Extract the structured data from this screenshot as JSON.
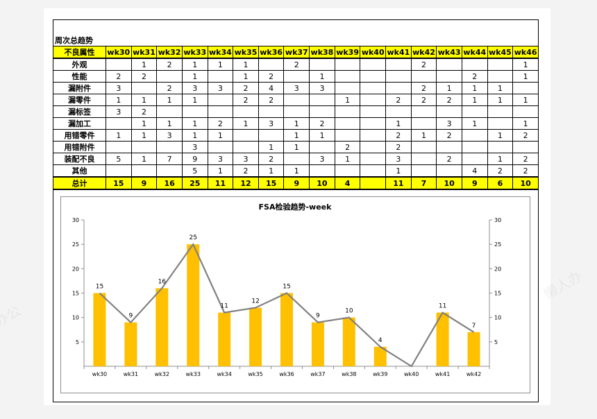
{
  "sheet_title": "周次总趋势",
  "table": {
    "header_label": "不良属性",
    "weeks": [
      "wk30",
      "wk31",
      "wk32",
      "wk33",
      "wk34",
      "wk35",
      "wk36",
      "wk37",
      "wk38",
      "wk39",
      "wk40",
      "wk41",
      "wk42",
      "wk43",
      "wk44",
      "wk45",
      "wk46"
    ],
    "rows": [
      {
        "label": "外观",
        "values": [
          "",
          "1",
          "2",
          "1",
          "1",
          "1",
          "",
          "2",
          "",
          "",
          "",
          "",
          "2",
          "",
          "",
          "",
          "1"
        ]
      },
      {
        "label": "性能",
        "values": [
          "2",
          "2",
          "",
          "1",
          "",
          "1",
          "2",
          "",
          "1",
          "",
          "",
          "",
          "",
          "",
          "2",
          "",
          "1"
        ]
      },
      {
        "label": "漏附件",
        "values": [
          "3",
          "",
          "2",
          "3",
          "3",
          "2",
          "4",
          "3",
          "3",
          "",
          "",
          "",
          "2",
          "1",
          "1",
          "1",
          ""
        ]
      },
      {
        "label": "漏零件",
        "values": [
          "1",
          "1",
          "1",
          "1",
          "",
          "2",
          "2",
          "",
          "",
          "1",
          "",
          "2",
          "2",
          "2",
          "1",
          "1",
          "1"
        ]
      },
      {
        "label": "漏标签",
        "values": [
          "3",
          "2",
          "",
          "",
          "",
          "",
          "",
          "",
          "",
          "",
          "",
          "",
          "",
          "",
          "",
          "",
          ""
        ]
      },
      {
        "label": "漏加工",
        "values": [
          "",
          "1",
          "1",
          "1",
          "2",
          "1",
          "3",
          "1",
          "2",
          "",
          "",
          "1",
          "",
          "3",
          "1",
          "",
          "1"
        ]
      },
      {
        "label": "用错零件",
        "values": [
          "1",
          "1",
          "3",
          "1",
          "1",
          "",
          "",
          "1",
          "1",
          "",
          "",
          "2",
          "1",
          "2",
          "",
          "1",
          "2"
        ]
      },
      {
        "label": "用错附件",
        "values": [
          "",
          "",
          "",
          "3",
          "",
          "",
          "1",
          "1",
          "",
          "2",
          "",
          "2",
          "",
          "",
          "",
          "",
          ""
        ]
      },
      {
        "label": "装配不良",
        "values": [
          "5",
          "1",
          "7",
          "9",
          "3",
          "3",
          "2",
          "",
          "3",
          "1",
          "",
          "3",
          "",
          "2",
          "",
          "1",
          "2"
        ]
      },
      {
        "label": "其他",
        "values": [
          "",
          "",
          "",
          "5",
          "1",
          "2",
          "1",
          "1",
          "",
          "",
          "",
          "1",
          "",
          "",
          "4",
          "2",
          "2"
        ]
      }
    ],
    "total_label": "总计",
    "totals": [
      "15",
      "9",
      "16",
      "25",
      "11",
      "12",
      "15",
      "9",
      "10",
      "4",
      "",
      "11",
      "7",
      "10",
      "9",
      "6",
      "10"
    ]
  },
  "chart_data": {
    "type": "bar",
    "title": "FSA检验趋势-week",
    "categories": [
      "wk30",
      "wk31",
      "wk32",
      "wk33",
      "wk34",
      "wk35",
      "wk36",
      "wk37",
      "wk38",
      "wk39",
      "wk40",
      "wk41",
      "wk42"
    ],
    "series": [
      {
        "type": "bar",
        "values": [
          15,
          9,
          16,
          25,
          11,
          12,
          15,
          9,
          10,
          4,
          null,
          11,
          7
        ],
        "color": "#ffc000"
      },
      {
        "type": "line",
        "values": [
          15,
          9,
          16,
          25,
          11,
          12,
          15,
          9,
          10,
          4,
          0,
          11,
          7
        ],
        "color": "#808080"
      }
    ],
    "data_labels": [
      "15",
      "9",
      "16",
      "25",
      "11",
      "12",
      "15",
      "9",
      "10",
      "4",
      "",
      "11",
      "7"
    ],
    "ylim": [
      0,
      30
    ],
    "yticks": [
      5,
      10,
      15,
      20,
      25,
      30
    ],
    "secondary_yticks": [
      5,
      10,
      15,
      20,
      25,
      30
    ],
    "grid": false,
    "legend": "none"
  }
}
